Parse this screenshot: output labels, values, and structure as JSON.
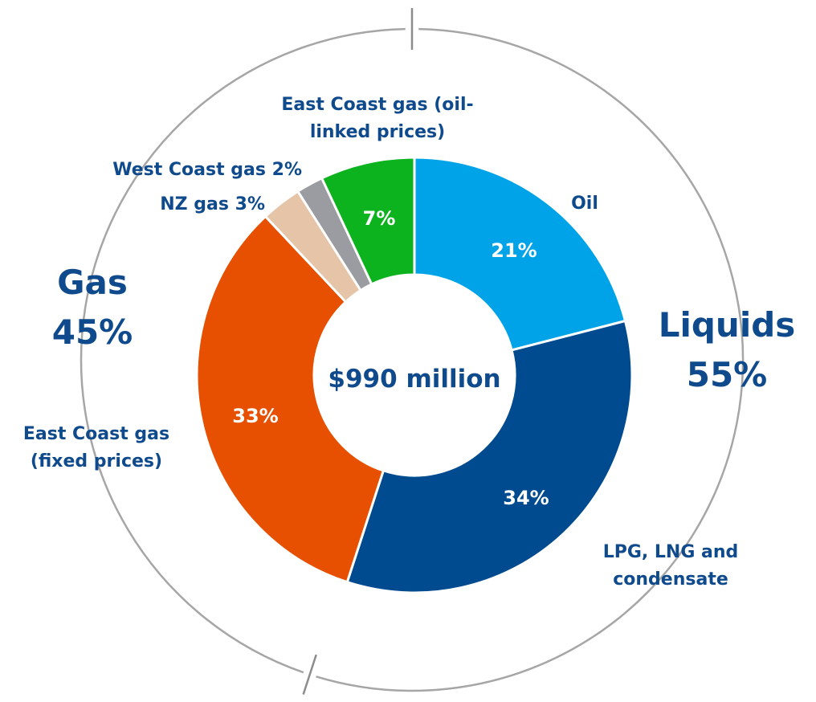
{
  "chart_data": {
    "type": "donut",
    "center_label": "$990 million",
    "categories": [
      "Oil",
      "LPG, LNG and condensate",
      "East Coast gas (fixed prices)",
      "NZ gas",
      "West Coast gas",
      "East Coast gas (oil-linked prices)"
    ],
    "values": [
      21,
      34,
      33,
      3,
      2,
      7
    ],
    "value_labels": [
      "21%",
      "34%",
      "33%",
      "3%",
      "2%",
      "7%"
    ],
    "colors": [
      "#00a3e8",
      "#004a8f",
      "#e65000",
      "#e5c4a8",
      "#9a9ca1",
      "#0db31f"
    ],
    "groups": [
      {
        "name": "Liquids",
        "value": 55,
        "value_label": "55%"
      },
      {
        "name": "Gas",
        "value": 45,
        "value_label": "45%"
      }
    ]
  }
}
